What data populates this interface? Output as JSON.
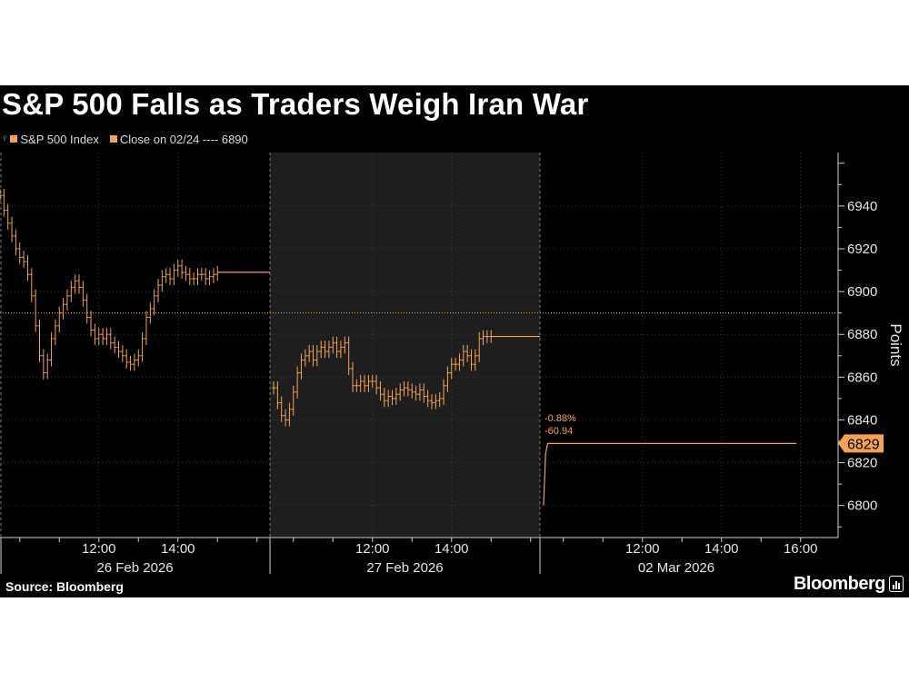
{
  "chart_data": {
    "type": "ohlc",
    "title": "S&P 500 Falls as Traders Weigh Iran War",
    "ylabel": "Points",
    "ylim": [
      6785,
      6965
    ],
    "yticks": [
      6800,
      6820,
      6840,
      6860,
      6880,
      6900,
      6920,
      6940
    ],
    "legend": [
      {
        "name": "S&P 500 Index",
        "color": "#f2a454"
      },
      {
        "name": "Close on 02/24 ---- 6890",
        "color": "#f2a454"
      }
    ],
    "reference_line": {
      "value": 6890,
      "label": "Close on 02/24"
    },
    "last_value_label": "6829",
    "last_value": 6829,
    "annotations": {
      "pct_change": "-0.88%",
      "point_change": "-60.94"
    },
    "sessions": [
      {
        "date": "26 Feb 2026",
        "ticks": [
          "12:00",
          "14:00"
        ],
        "shaded": false,
        "points": [
          [
            9.5,
            6945
          ],
          [
            9.6,
            6938
          ],
          [
            9.7,
            6932
          ],
          [
            9.8,
            6926
          ],
          [
            9.9,
            6920
          ],
          [
            10.0,
            6916
          ],
          [
            10.1,
            6914
          ],
          [
            10.2,
            6908
          ],
          [
            10.3,
            6898
          ],
          [
            10.4,
            6884
          ],
          [
            10.5,
            6870
          ],
          [
            10.6,
            6862
          ],
          [
            10.7,
            6868
          ],
          [
            10.8,
            6878
          ],
          [
            10.9,
            6884
          ],
          [
            11.0,
            6890
          ],
          [
            11.1,
            6894
          ],
          [
            11.2,
            6898
          ],
          [
            11.3,
            6902
          ],
          [
            11.4,
            6905
          ],
          [
            11.5,
            6902
          ],
          [
            11.6,
            6896
          ],
          [
            11.7,
            6888
          ],
          [
            11.8,
            6882
          ],
          [
            11.9,
            6878
          ],
          [
            12.0,
            6880
          ],
          [
            12.1,
            6878
          ],
          [
            12.2,
            6880
          ],
          [
            12.3,
            6876
          ],
          [
            12.4,
            6874
          ],
          [
            12.5,
            6872
          ],
          [
            12.6,
            6870
          ],
          [
            12.7,
            6867
          ],
          [
            12.8,
            6866
          ],
          [
            12.9,
            6868
          ],
          [
            13.0,
            6870
          ],
          [
            13.1,
            6878
          ],
          [
            13.2,
            6888
          ],
          [
            13.3,
            6892
          ],
          [
            13.4,
            6898
          ],
          [
            13.5,
            6903
          ],
          [
            13.6,
            6907
          ],
          [
            13.7,
            6908
          ],
          [
            13.8,
            6906
          ],
          [
            13.9,
            6910
          ],
          [
            14.0,
            6912
          ],
          [
            14.1,
            6909
          ],
          [
            14.2,
            6908
          ],
          [
            14.3,
            6906
          ],
          [
            14.4,
            6906
          ],
          [
            14.5,
            6908
          ],
          [
            14.6,
            6908
          ],
          [
            14.7,
            6906
          ],
          [
            14.8,
            6907
          ],
          [
            14.9,
            6908
          ],
          [
            15.0,
            6909
          ]
        ]
      },
      {
        "date": "27 Feb 2026",
        "ticks": [
          "12:00",
          "14:00"
        ],
        "shaded": true,
        "points": [
          [
            9.5,
            6855
          ],
          [
            9.6,
            6848
          ],
          [
            9.7,
            6842
          ],
          [
            9.8,
            6840
          ],
          [
            9.9,
            6845
          ],
          [
            10.0,
            6853
          ],
          [
            10.1,
            6862
          ],
          [
            10.2,
            6868
          ],
          [
            10.3,
            6870
          ],
          [
            10.4,
            6872
          ],
          [
            10.5,
            6868
          ],
          [
            10.6,
            6872
          ],
          [
            10.7,
            6874
          ],
          [
            10.8,
            6872
          ],
          [
            10.9,
            6874
          ],
          [
            11.0,
            6876
          ],
          [
            11.1,
            6872
          ],
          [
            11.2,
            6874
          ],
          [
            11.3,
            6876
          ],
          [
            11.4,
            6864
          ],
          [
            11.5,
            6856
          ],
          [
            11.6,
            6856
          ],
          [
            11.7,
            6858
          ],
          [
            11.8,
            6856
          ],
          [
            11.9,
            6858
          ],
          [
            12.0,
            6858
          ],
          [
            12.1,
            6855
          ],
          [
            12.2,
            6852
          ],
          [
            12.3,
            6849
          ],
          [
            12.4,
            6851
          ],
          [
            12.5,
            6850
          ],
          [
            12.6,
            6852
          ],
          [
            12.7,
            6854
          ],
          [
            12.8,
            6855
          ],
          [
            12.9,
            6854
          ],
          [
            13.0,
            6853
          ],
          [
            13.1,
            6852
          ],
          [
            13.2,
            6854
          ],
          [
            13.3,
            6851
          ],
          [
            13.4,
            6849
          ],
          [
            13.5,
            6848
          ],
          [
            13.6,
            6849
          ],
          [
            13.7,
            6850
          ],
          [
            13.8,
            6856
          ],
          [
            13.9,
            6862
          ],
          [
            14.0,
            6866
          ],
          [
            14.1,
            6866
          ],
          [
            14.2,
            6868
          ],
          [
            14.3,
            6872
          ],
          [
            14.4,
            6870
          ],
          [
            14.5,
            6866
          ],
          [
            14.6,
            6870
          ],
          [
            14.7,
            6878
          ],
          [
            14.8,
            6879
          ],
          [
            14.9,
            6879
          ],
          [
            15.0,
            6879
          ]
        ]
      },
      {
        "date": "02 Mar 2026",
        "ticks": [
          "12:00",
          "14:00",
          "16:00"
        ],
        "shaded": false,
        "points": [
          [
            9.5,
            6800
          ],
          [
            9.55,
            6824
          ],
          [
            9.6,
            6829
          ],
          [
            15.9,
            6829
          ]
        ]
      }
    ]
  }
}
